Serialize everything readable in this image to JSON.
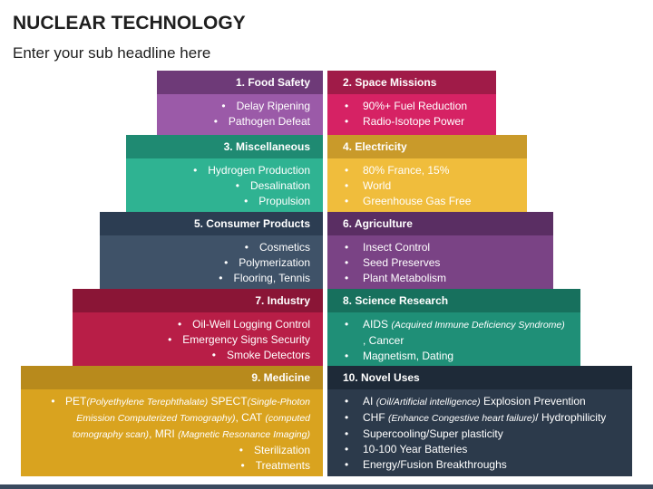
{
  "title": "NUCLEAR TECHNOLOGY",
  "subtitle": "Enter your sub headline here",
  "blocks": [
    {
      "label": "1. Food Safety",
      "items": [
        "Delay Ripening",
        "Pathogen Defeat"
      ],
      "header_color": "#6e3a78",
      "body_color": "#9b5aa8"
    },
    {
      "label": "2. Space Missions",
      "items": [
        "90%+ Fuel Reduction",
        "Radio-Isotope Power"
      ],
      "header_color": "#a01b48",
      "body_color": "#d62264"
    },
    {
      "label": "3. Miscellaneous",
      "items": [
        "Hydrogen Production",
        "Desalination",
        "Propulsion"
      ],
      "header_color": "#1f8a72",
      "body_color": "#2fb392"
    },
    {
      "label": "4. Electricity",
      "items": [
        "80% France, 15%",
        "World",
        "Greenhouse Gas Free"
      ],
      "header_color": "#c99a2a",
      "body_color": "#f0bd3c"
    },
    {
      "label": "5. Consumer Products",
      "items": [
        "Cosmetics",
        "Polymerization",
        "Flooring, Tennis"
      ],
      "header_color": "#2c3d52",
      "body_color": "#3f5268"
    },
    {
      "label": "6. Agriculture",
      "items": [
        "Insect Control",
        "Seed Preserves",
        "Plant Metabolism"
      ],
      "header_color": "#5a2e63",
      "body_color": "#7a4385"
    },
    {
      "label": "7. Industry",
      "items": [
        "Oil-Well Logging Control",
        "Emergency Signs Security",
        "Smoke Detectors"
      ],
      "header_color": "#8a1536",
      "body_color": "#b81e47"
    },
    {
      "label": "8. Science Research",
      "items_rich": {
        "aids": "AIDS",
        "aids_note": "(Acquired Immune Deficiency Syndrome)",
        "cancer": ", Cancer",
        "magnetism": "Magnetism, Dating"
      },
      "header_color": "#17705d",
      "body_color": "#1f8f77"
    },
    {
      "label": "9. Medicine",
      "rich": {
        "pet": "PET",
        "pet_note": "(Polyethylene Terephthalate)",
        "spect": " SPECT",
        "spect_note": "(Single-Photon Emission Computerized Tomography)",
        "cat": ", CAT",
        "cat_note": "(computed tomography scan)",
        "mri": ", MRI",
        "mri_note": "(Magnetic Resonance Imaging)",
        "sterilization": "Sterilization",
        "treatments": "Treatments"
      },
      "header_color": "#b88a1c",
      "body_color": "#d9a31f"
    },
    {
      "label": "10. Novel Uses",
      "rich": {
        "ai": "AI",
        "ai_note": "(Oil/Artificial intelligence)",
        "ai_rest": " Explosion Prevention",
        "chf": "CHF",
        "chf_note": "(Enhance Congestive heart failure)",
        "chf_rest": "/ Hydrophilicity",
        "super": "Supercooling/Super plasticity",
        "batteries": "10-100 Year Batteries",
        "energy": "Energy/Fusion Breakthroughs"
      },
      "header_color": "#1e2a38",
      "body_color": "#2c3a4b"
    }
  ]
}
